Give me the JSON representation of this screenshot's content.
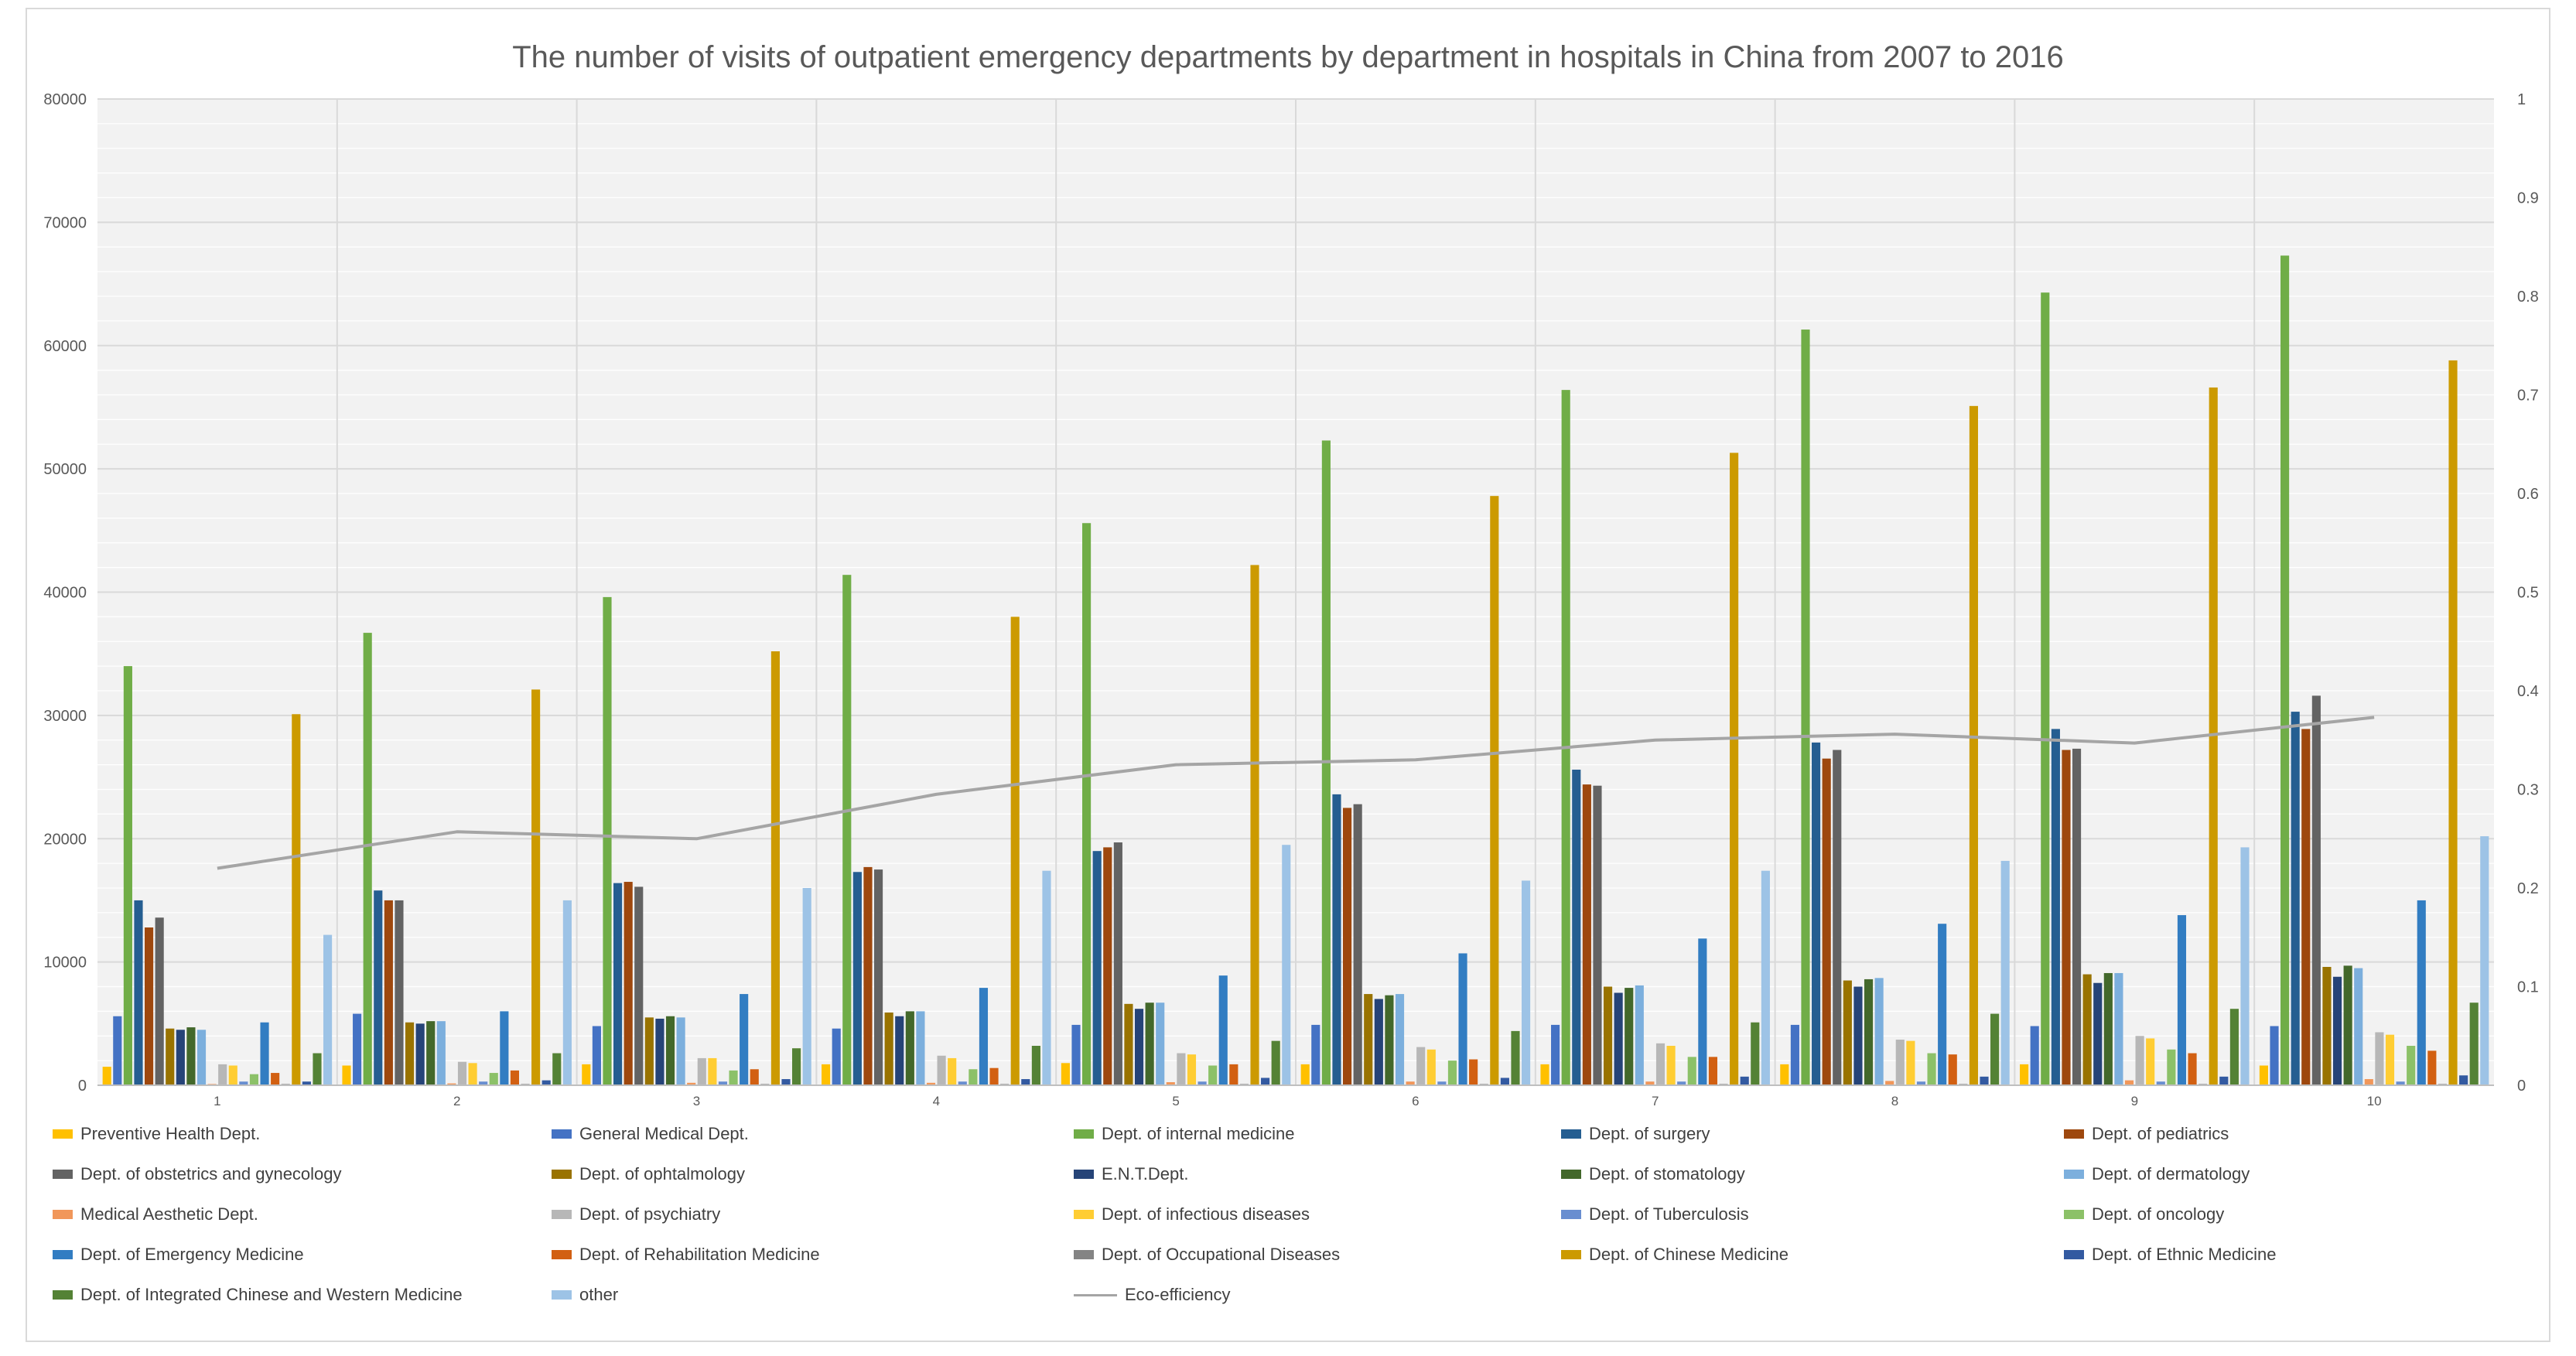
{
  "chart_data": {
    "type": "bar",
    "title": "The number of visits of outpatient emergency departments by department in hospitals in China from 2007 to 2016",
    "xlabel": "",
    "ylabel": "",
    "categories": [
      "1",
      "2",
      "3",
      "4",
      "5",
      "6",
      "7",
      "8",
      "9",
      "10"
    ],
    "ylim": [
      0,
      80000
    ],
    "y_ticks": [
      "0",
      "10000",
      "20000",
      "30000",
      "40000",
      "50000",
      "60000",
      "70000",
      "80000"
    ],
    "y2lim": [
      0,
      1
    ],
    "y2_ticks": [
      "0",
      "0.1",
      "0.2",
      "0.3",
      "0.4",
      "0.5",
      "0.6",
      "0.7",
      "0.8",
      "0.9",
      "1"
    ],
    "grid": true,
    "legend_position": "bottom",
    "series": [
      {
        "name": "Preventive Health Dept.",
        "color": "#FFC000",
        "values": [
          1500,
          1600,
          1700,
          1700,
          1800,
          1700,
          1700,
          1700,
          1700,
          1600
        ]
      },
      {
        "name": "General Medical  Dept.",
        "color": "#4472C4",
        "values": [
          5600,
          5800,
          4800,
          4600,
          4900,
          4900,
          4900,
          4900,
          4800,
          4800
        ]
      },
      {
        "name": "Dept. of internal medicine",
        "color": "#70AD47",
        "values": [
          34000,
          36700,
          39600,
          41400,
          45600,
          52300,
          56400,
          61300,
          64300,
          67300
        ]
      },
      {
        "name": "Dept. of surgery",
        "color": "#255E91",
        "values": [
          15000,
          15800,
          16400,
          17300,
          19000,
          23600,
          25600,
          27800,
          28900,
          30300
        ]
      },
      {
        "name": "Dept. of pediatrics",
        "color": "#9E480E",
        "values": [
          12800,
          15000,
          16500,
          17700,
          19300,
          22500,
          24400,
          26500,
          27200,
          28900
        ]
      },
      {
        "name": "Dept. of obstetrics and gynecology",
        "color": "#636363",
        "values": [
          13600,
          15000,
          16100,
          17500,
          19700,
          22800,
          24300,
          27200,
          27300,
          31600
        ]
      },
      {
        "name": "Dept. of ophtalmology",
        "color": "#997300",
        "values": [
          4600,
          5100,
          5500,
          5900,
          6600,
          7400,
          8000,
          8500,
          9000,
          9600
        ]
      },
      {
        "name": "E.N.T.Dept.",
        "color": "#264478",
        "values": [
          4500,
          5000,
          5400,
          5600,
          6200,
          7000,
          7500,
          8000,
          8300,
          8800
        ]
      },
      {
        "name": "Dept. of stomatology",
        "color": "#43682B",
        "values": [
          4700,
          5200,
          5600,
          6000,
          6700,
          7300,
          7900,
          8600,
          9100,
          9700
        ]
      },
      {
        "name": "Dept. of dermatology",
        "color": "#7CAFDD",
        "values": [
          4500,
          5200,
          5500,
          6000,
          6700,
          7400,
          8100,
          8700,
          9100,
          9500
        ]
      },
      {
        "name": "Medical Aesthetic Dept.",
        "color": "#F1975A",
        "values": [
          100,
          150,
          200,
          200,
          250,
          300,
          300,
          350,
          400,
          500
        ]
      },
      {
        "name": "Dept. of psychiatry",
        "color": "#B7B7B7",
        "values": [
          1700,
          1900,
          2200,
          2400,
          2600,
          3100,
          3400,
          3700,
          4000,
          4300
        ]
      },
      {
        "name": "Dept. of infectious diseases",
        "color": "#FFCD33",
        "values": [
          1600,
          1800,
          2200,
          2200,
          2500,
          2900,
          3200,
          3600,
          3800,
          4100
        ]
      },
      {
        "name": "Dept. of Tuberculosis",
        "color": "#698ED0",
        "values": [
          300,
          300,
          300,
          300,
          300,
          300,
          300,
          300,
          300,
          300
        ]
      },
      {
        "name": "Dept. of oncology",
        "color": "#8CC168",
        "values": [
          900,
          1000,
          1200,
          1300,
          1600,
          2000,
          2300,
          2600,
          2900,
          3200
        ]
      },
      {
        "name": "Dept. of Emergency Medicine",
        "color": "#327DC2",
        "values": [
          5100,
          6000,
          7400,
          7900,
          8900,
          10700,
          11900,
          13100,
          13800,
          15000
        ]
      },
      {
        "name": "Dept. of Rehabilitation Medicine",
        "color": "#D26012",
        "values": [
          1000,
          1200,
          1300,
          1400,
          1700,
          2100,
          2300,
          2500,
          2600,
          2800
        ]
      },
      {
        "name": "Dept. of Occupational Diseases",
        "color": "#848484",
        "values": [
          100,
          100,
          100,
          100,
          100,
          100,
          100,
          100,
          100,
          100
        ]
      },
      {
        "name": "Dept. of Chinese Medicine",
        "color": "#CC9A00",
        "values": [
          30100,
          32100,
          35200,
          38000,
          42200,
          47800,
          51300,
          55100,
          56600,
          58800
        ]
      },
      {
        "name": "Dept. of Ethnic Medicine",
        "color": "#335AA1",
        "values": [
          300,
          400,
          500,
          500,
          600,
          600,
          700,
          700,
          700,
          800
        ]
      },
      {
        "name": "Dept. of Integrated Chinese and Western Medicine",
        "color": "#548235",
        "values": [
          2600,
          2600,
          3000,
          3200,
          3600,
          4400,
          5100,
          5800,
          6200,
          6700
        ]
      },
      {
        "name": "other",
        "color": "#9DC3E6",
        "values": [
          12200,
          15000,
          16000,
          17400,
          19500,
          16600,
          17400,
          18200,
          19300,
          20200
        ]
      }
    ],
    "line_series": {
      "name": "Eco-efficiency",
      "color": "#A5A5A5",
      "axis": "secondary",
      "values": [
        0.22,
        0.257,
        0.25,
        0.295,
        0.325,
        0.33,
        0.35,
        0.356,
        0.347,
        0.373
      ]
    }
  }
}
